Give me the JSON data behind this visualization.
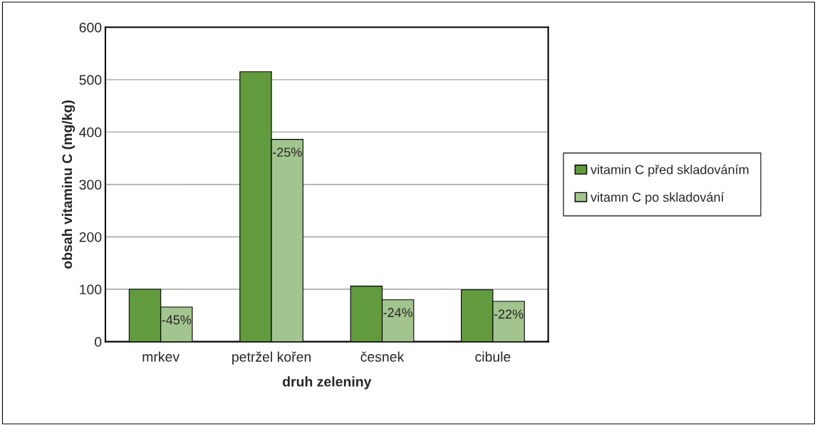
{
  "chart_data": {
    "type": "bar",
    "xlabel": "druh zeleniny",
    "ylabel": "obsah vitaminu C (mg/kg)",
    "categories": [
      "mrkev",
      "petržel kořen",
      "česnek",
      "cibule"
    ],
    "series": [
      {
        "name": "vitamin C před skladováním",
        "color": "#629b3d",
        "values": [
          100,
          515,
          106,
          99
        ]
      },
      {
        "name": "vitamn C po skladování",
        "color": "#a2c48e",
        "values": [
          66,
          386,
          80,
          77
        ]
      }
    ],
    "annotations": [
      {
        "text": "-45%",
        "x": "mrkev",
        "y": 66
      },
      {
        "text": "-25%",
        "x": "petržel kořen",
        "y": 386
      },
      {
        "text": "-24%",
        "x": "česnek",
        "y": 80
      },
      {
        "text": "-22%",
        "x": "cibule",
        "y": 77
      }
    ],
    "ylim": [
      0,
      600
    ],
    "yticks": [
      0,
      100,
      200,
      300,
      400,
      500,
      600
    ],
    "grid": "y",
    "legend": "right"
  }
}
